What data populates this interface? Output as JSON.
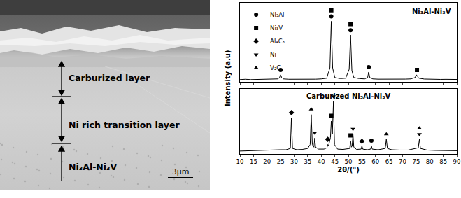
{
  "micrograph": {
    "layers": [
      "Carburized layer",
      "Ni rich transition layer",
      "Ni₃Al-Ni₃V"
    ],
    "scale_bar": "3μm"
  },
  "chart_data": [
    {
      "type": "line",
      "title": "Ni₃Al-Ni₃V",
      "y_label": "Intensity (a.u)",
      "xlim": [
        10,
        90
      ],
      "xticks": [
        10,
        15,
        20,
        25,
        30,
        35,
        40,
        45,
        50,
        55,
        60,
        65,
        70,
        75,
        80,
        85,
        90
      ],
      "ylim": [
        0,
        115
      ],
      "yticks": [],
      "grid": false,
      "tick_labels": false,
      "legend": "upper left",
      "color": "#000000",
      "series": [
        {
          "name": "Ni₃Al-Ni₃V",
          "type": "line",
          "color": "#000000",
          "x": [
            10,
            12,
            14,
            16,
            18,
            20,
            22,
            24,
            24.6,
            25.0,
            25.4,
            26,
            28,
            30,
            32,
            34,
            36,
            38,
            40,
            42,
            43.2,
            43.7,
            44.2,
            45,
            47,
            49,
            50.3,
            50.8,
            51.3,
            52,
            54,
            56,
            57.1,
            57.5,
            57.9,
            59,
            61,
            63,
            65,
            67,
            69,
            71,
            73,
            74.6,
            75.1,
            75.5,
            76,
            78,
            80,
            82,
            84,
            86,
            88,
            90
          ],
          "values": [
            3,
            3.5,
            3,
            3.2,
            3,
            3.3,
            3.5,
            4,
            6,
            10,
            6,
            4,
            3.5,
            3.4,
            3.3,
            3.2,
            3.5,
            3.6,
            4,
            5,
            20,
            88,
            20,
            6,
            4.5,
            5,
            18,
            68,
            16,
            6,
            4.5,
            4,
            6,
            14,
            6,
            4,
            3.6,
            3.5,
            3.4,
            3.6,
            3.5,
            3.7,
            4,
            6,
            10,
            8,
            5,
            3.8,
            3.5,
            3.4,
            3.3,
            3.4,
            3.3,
            3.2
          ]
        },
        {
          "name": "Ni₃Al",
          "type": "scatter",
          "marker": "circle",
          "color": "#000000",
          "x": [
            25,
            43.7,
            50.8,
            57.5
          ],
          "values": [
            17,
            95,
            75,
            21
          ]
        },
        {
          "name": "Ni₃V",
          "type": "scatter",
          "marker": "square",
          "color": "#000000",
          "x": [
            43.7,
            50.8,
            75.3
          ],
          "values": [
            104,
            84,
            17
          ]
        }
      ]
    },
    {
      "type": "line",
      "title": "Carburized Ni₃Al-Ni₃V",
      "x_label": "2θ/(°)",
      "xlim": [
        10,
        90
      ],
      "xticks": [
        10,
        15,
        20,
        25,
        30,
        35,
        40,
        45,
        50,
        55,
        60,
        65,
        70,
        75,
        80,
        85,
        90
      ],
      "ylim": [
        0,
        100
      ],
      "yticks": [],
      "grid": false,
      "tick_labels": "x",
      "color": "#000000",
      "series": [
        {
          "name": "Carburized Ni₃Al-Ni₃V",
          "type": "line",
          "color": "#000000",
          "x": [
            10,
            13,
            16,
            19,
            22,
            25,
            27,
            28.6,
            29.0,
            29.4,
            31,
            33,
            35,
            35.9,
            36.3,
            36.7,
            37.3,
            37.6,
            37.9,
            39,
            41,
            42.1,
            42.4,
            42.7,
            43.4,
            43.7,
            44.1,
            44.5,
            44.9,
            46,
            48,
            50.5,
            50.8,
            51.1,
            51.4,
            51.7,
            52.0,
            53,
            54.7,
            55.0,
            55.3,
            57,
            58.2,
            58.5,
            58.8,
            61,
            63.6,
            64.0,
            64.4,
            66,
            69,
            72,
            75.8,
            76.2,
            76.6,
            79,
            82,
            85,
            88,
            90
          ],
          "values": [
            4,
            4.5,
            5,
            5,
            5.5,
            6,
            6,
            8,
            55,
            8,
            6,
            6.5,
            8,
            14,
            60,
            14,
            10,
            24,
            10,
            7,
            7,
            9,
            14,
            12,
            25,
            50,
            30,
            80,
            14,
            7,
            6.5,
            8,
            20,
            10,
            12,
            30,
            10,
            6.5,
            7,
            12,
            7,
            6,
            7,
            12,
            7,
            6,
            8,
            22,
            8,
            6,
            5.5,
            5.5,
            9,
            22,
            8,
            5.5,
            5,
            5,
            4.5,
            4.5
          ]
        },
        {
          "name": "Al₄C₃",
          "type": "scatter",
          "marker": "diamond",
          "color": "#000000",
          "x": [
            29,
            42.4,
            55
          ],
          "values": [
            63,
            22,
            19
          ]
        },
        {
          "name": "Ni",
          "type": "scatter",
          "marker": "heart",
          "color": "#000000",
          "x": [
            37.6,
            44.5,
            51.7,
            76.2
          ],
          "values": [
            32,
            88,
            38,
            30
          ]
        },
        {
          "name": "V₂C",
          "type": "scatter",
          "marker": "spade",
          "color": "#000000",
          "x": [
            36.3,
            64,
            76.2
          ],
          "values": [
            68,
            30,
            39
          ]
        },
        {
          "name": "Ni₃V",
          "type": "scatter",
          "marker": "square",
          "color": "#000000",
          "x": [
            43.7,
            50.8
          ],
          "values": [
            58,
            28
          ]
        },
        {
          "name": "Ni₃Al",
          "type": "scatter",
          "marker": "circle",
          "color": "#000000",
          "x": [
            58.5
          ],
          "values": [
            20
          ]
        }
      ]
    }
  ]
}
